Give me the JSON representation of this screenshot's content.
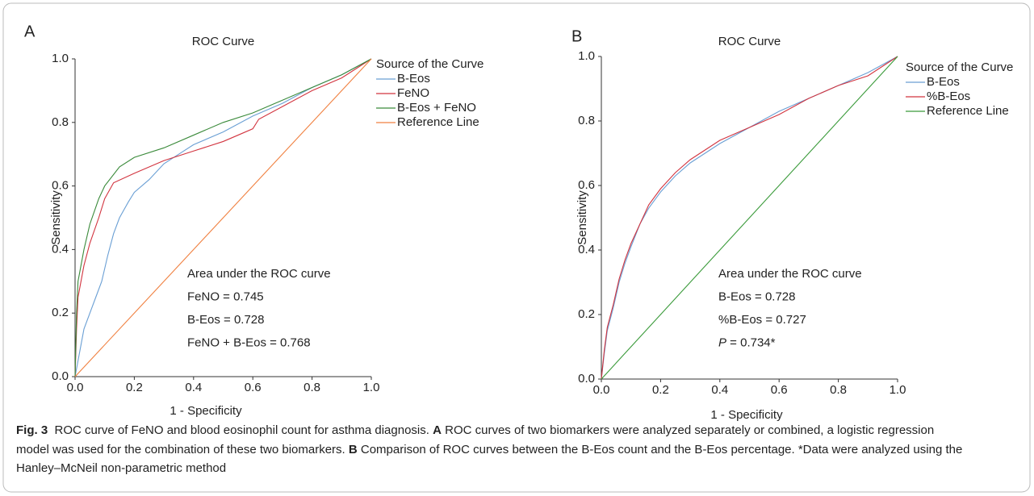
{
  "chart_data": [
    {
      "type": "line",
      "panel_label": "A",
      "title": "ROC Curve",
      "x_label": "1 - Specificity",
      "y_label": "Sensitivity",
      "legend_title": "Source of the Curve",
      "xlim": [
        0,
        1
      ],
      "ylim": [
        0,
        1
      ],
      "xticks": [
        {
          "value": 0,
          "label": "0.0"
        },
        0.2,
        0.4,
        0.6,
        0.8,
        {
          "value": 1,
          "label": "1.0"
        }
      ],
      "yticks": [
        {
          "value": 0,
          "label": "0.0"
        },
        0.2,
        0.4,
        0.6,
        0.8,
        {
          "value": 1,
          "label": "1.0"
        }
      ],
      "series": [
        {
          "name": "B-Eos",
          "color": "#6a9fd4",
          "x": [
            0,
            0.01,
            0.02,
            0.03,
            0.05,
            0.07,
            0.09,
            0.11,
            0.13,
            0.15,
            0.18,
            0.2,
            0.25,
            0.3,
            0.35,
            0.4,
            0.5,
            0.6,
            0.7,
            0.8,
            0.9,
            1
          ],
          "values": [
            0,
            0.05,
            0.1,
            0.15,
            0.2,
            0.25,
            0.3,
            0.38,
            0.45,
            0.5,
            0.55,
            0.58,
            0.62,
            0.67,
            0.7,
            0.73,
            0.77,
            0.82,
            0.86,
            0.91,
            0.95,
            1
          ]
        },
        {
          "name": "FeNO",
          "color": "#d2343f",
          "x": [
            0,
            0.005,
            0.01,
            0.03,
            0.05,
            0.08,
            0.1,
            0.13,
            0.2,
            0.3,
            0.4,
            0.5,
            0.55,
            0.6,
            0.62,
            0.7,
            0.8,
            0.9,
            1
          ],
          "values": [
            0,
            0.15,
            0.25,
            0.35,
            0.42,
            0.5,
            0.56,
            0.61,
            0.64,
            0.68,
            0.71,
            0.74,
            0.76,
            0.78,
            0.81,
            0.85,
            0.9,
            0.94,
            1
          ]
        },
        {
          "name": "B-Eos + FeNO",
          "color": "#3a8a3a",
          "x": [
            0,
            0.005,
            0.01,
            0.03,
            0.05,
            0.08,
            0.1,
            0.15,
            0.2,
            0.3,
            0.4,
            0.5,
            0.6,
            0.7,
            0.8,
            0.9,
            1
          ],
          "values": [
            0,
            0.2,
            0.3,
            0.4,
            0.48,
            0.56,
            0.6,
            0.66,
            0.69,
            0.72,
            0.76,
            0.8,
            0.83,
            0.87,
            0.91,
            0.95,
            1
          ]
        },
        {
          "name": "Reference Line",
          "color": "#f08040",
          "x": [
            0,
            1
          ],
          "values": [
            0,
            1
          ]
        }
      ],
      "annotations": [
        [
          "Area under the ROC curve"
        ],
        [
          "FeNO = 0.745"
        ],
        [
          "B-Eos = 0.728"
        ],
        [
          "FeNO + B-Eos = 0.768"
        ]
      ]
    },
    {
      "type": "line",
      "panel_label": "B",
      "title": "ROC Curve",
      "x_label": "1 - Specificity",
      "y_label": "Sensitivity",
      "legend_title": "Source of the Curve",
      "xlim": [
        0,
        1
      ],
      "ylim": [
        0,
        1
      ],
      "xticks": [
        {
          "value": 0,
          "label": "0.0"
        },
        0.2,
        0.4,
        0.6,
        0.8,
        {
          "value": 1,
          "label": "1.0"
        }
      ],
      "yticks": [
        {
          "value": 0,
          "label": "0.0"
        },
        0.2,
        0.4,
        0.6,
        0.8,
        {
          "value": 1,
          "label": "1.0"
        }
      ],
      "series": [
        {
          "name": "B-Eos",
          "color": "#6a9fd4",
          "x": [
            0,
            0.01,
            0.02,
            0.04,
            0.06,
            0.08,
            0.1,
            0.13,
            0.16,
            0.2,
            0.25,
            0.3,
            0.35,
            0.4,
            0.5,
            0.6,
            0.7,
            0.8,
            0.9,
            1
          ],
          "values": [
            0,
            0.08,
            0.15,
            0.22,
            0.3,
            0.36,
            0.41,
            0.48,
            0.53,
            0.58,
            0.63,
            0.67,
            0.7,
            0.73,
            0.78,
            0.83,
            0.87,
            0.91,
            0.95,
            1
          ]
        },
        {
          "name": "%B-Eos",
          "color": "#d2343f",
          "x": [
            0,
            0.01,
            0.02,
            0.04,
            0.06,
            0.08,
            0.1,
            0.13,
            0.16,
            0.2,
            0.25,
            0.3,
            0.35,
            0.4,
            0.5,
            0.6,
            0.7,
            0.8,
            0.9,
            1
          ],
          "values": [
            0,
            0.09,
            0.16,
            0.23,
            0.31,
            0.37,
            0.42,
            0.48,
            0.54,
            0.59,
            0.64,
            0.68,
            0.71,
            0.74,
            0.78,
            0.82,
            0.87,
            0.91,
            0.94,
            1
          ]
        },
        {
          "name": "Reference Line",
          "color": "#3a9a3a",
          "x": [
            0,
            1
          ],
          "values": [
            0,
            1
          ]
        }
      ],
      "annotations": [
        [
          "Area under the ROC curve"
        ],
        [
          "B-Eos = 0.728"
        ],
        [
          "%B-Eos = 0.727"
        ],
        [
          "P",
          " = 0.734*"
        ]
      ]
    }
  ],
  "caption": [
    {
      "text": "Fig. 3",
      "bold": true
    },
    {
      "text": "  ROC curve of FeNO and blood eosinophil count for asthma diagnosis. ",
      "bold": false
    },
    {
      "text": "A",
      "bold": true
    },
    {
      "text": " ROC curves of two biomarkers were analyzed separately or combined, a logistic regression model was used for the combination of these two biomarkers. ",
      "bold": false
    },
    {
      "text": "B",
      "bold": true
    },
    {
      "text": " Comparison of ROC curves between the B-Eos count and the B-Eos percentage. *Data were analyzed using the Hanley–McNeil non-parametric method",
      "bold": false
    }
  ]
}
